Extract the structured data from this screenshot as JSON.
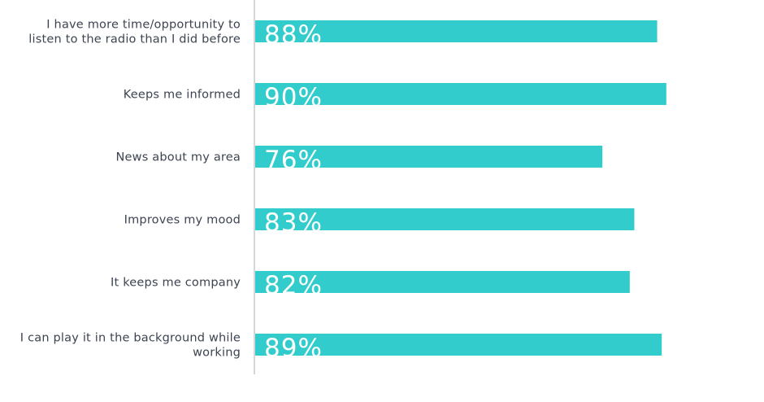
{
  "colors": {
    "bar": "#33cccc",
    "axis": "#c8c8c8",
    "label_text": "#3d4451",
    "value_text": "#ffffff"
  },
  "chart_data": {
    "type": "bar",
    "orientation": "horizontal",
    "title": "",
    "xlabel": "",
    "ylabel": "",
    "xlim": [
      0,
      100
    ],
    "grid": false,
    "legend": "none",
    "categories": [
      "I have more time/opportunity to listen to the radio than I did before",
      "Keeps me informed",
      "News about my area",
      "Improves my mood",
      "It keeps me company",
      "I can play it in the background while working"
    ],
    "category_lines": [
      [
        "I have more time/opportunity to",
        "listen to the radio than I did before"
      ],
      [
        "Keeps me informed"
      ],
      [
        "News about my area"
      ],
      [
        "Improves my mood"
      ],
      [
        "It keeps me company"
      ],
      [
        "I can play it in the background while",
        "working"
      ]
    ],
    "values": [
      88,
      90,
      76,
      83,
      82,
      89
    ],
    "value_labels": [
      "88%",
      "90%",
      "76%",
      "83%",
      "82%",
      "89%"
    ]
  }
}
